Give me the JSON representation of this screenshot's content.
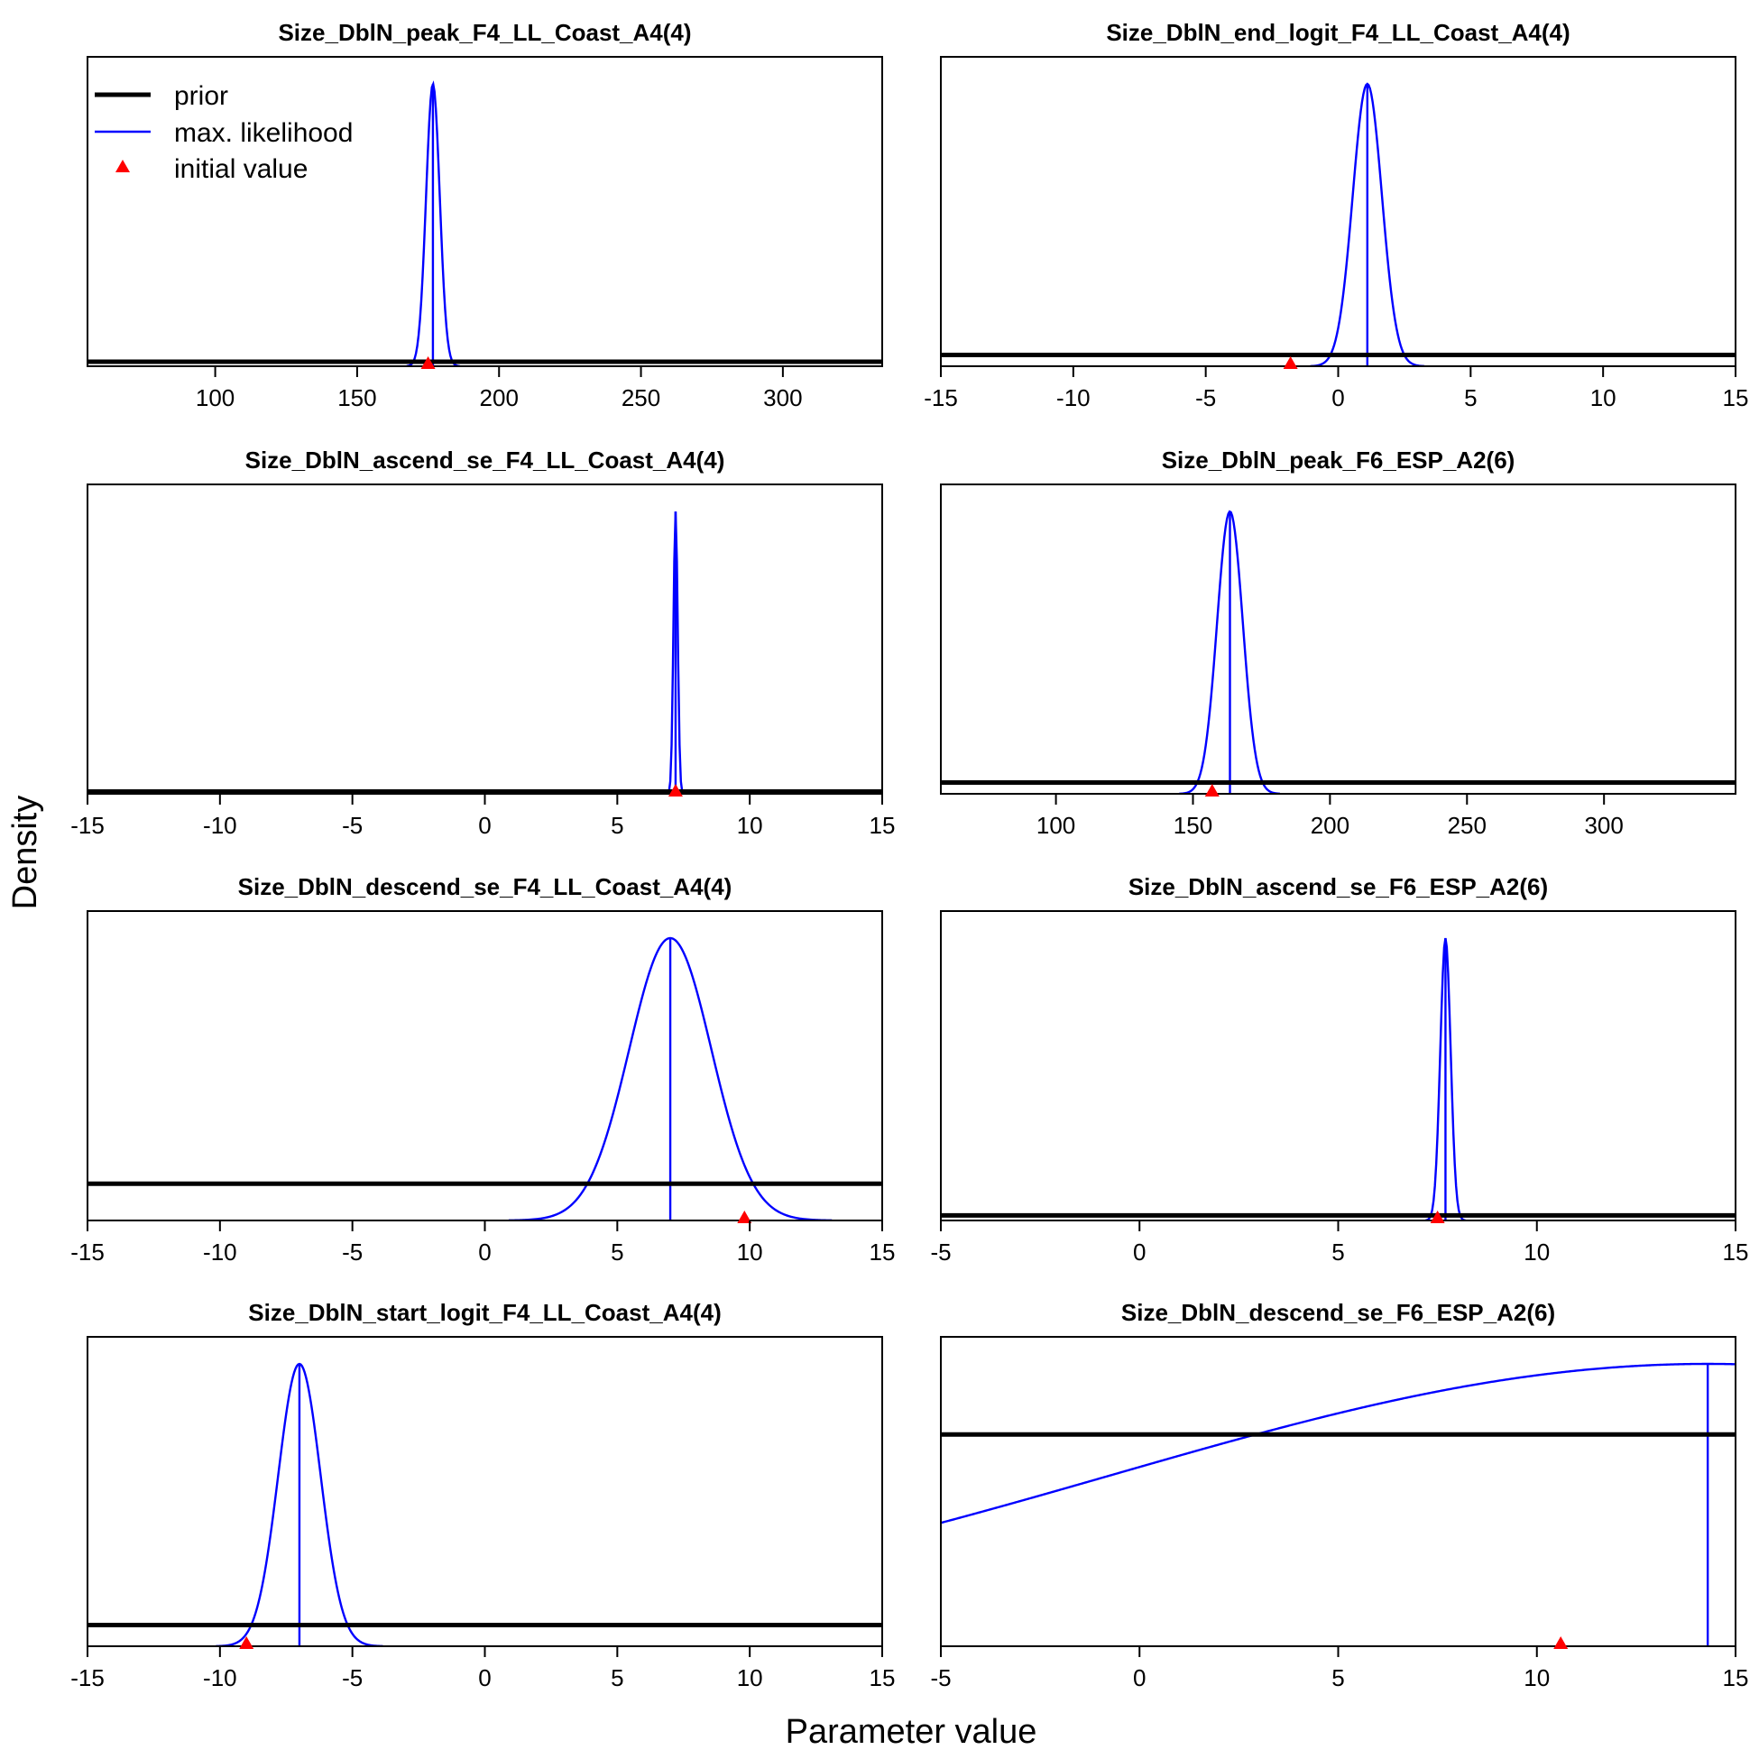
{
  "chart_data": {
    "type": "line",
    "xlabel": "Parameter value",
    "ylabel": "Density",
    "legend": {
      "placement": "top-left of first panel",
      "entries": [
        {
          "label": "prior",
          "color": "#000000",
          "symbol": "thick-line"
        },
        {
          "label": "max. likelihood",
          "color": "#0000ff",
          "symbol": "line"
        },
        {
          "label": "initial value",
          "color": "#ff0000",
          "symbol": "triangle"
        }
      ]
    },
    "colors": {
      "prior": "#000000",
      "mle": "#0000ff",
      "init": "#ff0000"
    },
    "panels": [
      {
        "title": "Size_DblN_peak_F4_LL_Coast_A4(4)",
        "xlim": [
          55,
          335
        ],
        "xticks": [
          100,
          150,
          200,
          250,
          300
        ],
        "mle": {
          "mean": 176.7,
          "sd": 2.4
        },
        "prior_level": 0.016,
        "init": 175,
        "mle_ratio": 1
      },
      {
        "title": "Size_DblN_end_logit_F4_LL_Coast_A4(4)",
        "xlim": [
          -15,
          15
        ],
        "xticks": [
          -15,
          -10,
          -5,
          0,
          5,
          10,
          15
        ],
        "mle": {
          "mean": 1.1,
          "sd": 0.55
        },
        "prior_level": 0.04,
        "init": -1.8,
        "mle_ratio": 1
      },
      {
        "title": "Size_DblN_ascend_se_F4_LL_Coast_A4(4)",
        "xlim": [
          -15,
          15
        ],
        "xticks": [
          -15,
          -10,
          -5,
          0,
          5,
          10,
          15
        ],
        "mle": {
          "mean": 7.2,
          "sd": 0.08
        },
        "prior_level": 0.008,
        "init": 7.2,
        "mle_ratio": 1
      },
      {
        "title": "Size_DblN_peak_F6_ESP_A2(6)",
        "xlim": [
          58,
          348
        ],
        "xticks": [
          100,
          150,
          200,
          250,
          300
        ],
        "mle": {
          "mean": 163.5,
          "sd": 4.7
        },
        "prior_level": 0.04,
        "init": 157,
        "mle_ratio": 1
      },
      {
        "title": "Size_DblN_descend_se_F4_LL_Coast_A4(4)",
        "xlim": [
          -15,
          15
        ],
        "xticks": [
          -15,
          -10,
          -5,
          0,
          5,
          10,
          15
        ],
        "mle": {
          "mean": 7.0,
          "sd": 1.55
        },
        "prior_level": 0.13,
        "init": 9.8,
        "mle_ratio": 1
      },
      {
        "title": "Size_DblN_ascend_se_F6_ESP_A2(6)",
        "xlim": [
          -5,
          15
        ],
        "xticks": [
          -5,
          0,
          5,
          10,
          15
        ],
        "mle": {
          "mean": 7.7,
          "sd": 0.13
        },
        "prior_level": 0.018,
        "init": 7.5,
        "mle_ratio": 1
      },
      {
        "title": "Size_DblN_start_logit_F4_LL_Coast_A4(4)",
        "xlim": [
          -15,
          15
        ],
        "xticks": [
          -15,
          -10,
          -5,
          0,
          5,
          10,
          15
        ],
        "mle": {
          "mean": -7.0,
          "sd": 0.8
        },
        "prior_level": 0.075,
        "init": -9.0,
        "mle_ratio": 1
      },
      {
        "title": "Size_DblN_descend_se_F6_ESP_A2(6)",
        "xlim": [
          -5,
          15
        ],
        "xticks": [
          -5,
          0,
          5,
          10,
          15
        ],
        "mle": {
          "mean": 14.3,
          "sd": 15
        },
        "prior_level": 0.75,
        "init": 10.6,
        "mle_ratio": 1
      }
    ]
  }
}
